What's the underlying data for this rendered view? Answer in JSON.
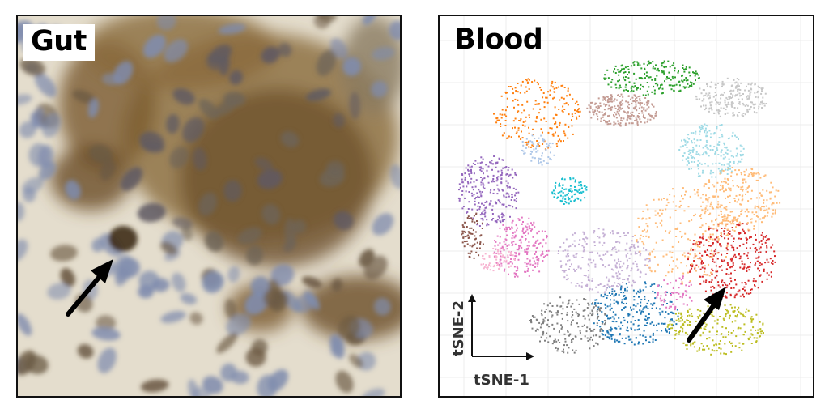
{
  "panels": {
    "gut": {
      "label": "Gut"
    },
    "blood": {
      "label": "Blood",
      "x_axis_label": "tSNE-1",
      "y_axis_label": "tSNE-2"
    }
  },
  "colors": {
    "arrow": "#000000",
    "tissue_background": "#e6e0d2",
    "brown_stain": "#7a5a30",
    "blue_nucleus": "#7f8cae",
    "cluster_palette": [
      "#2ca02c",
      "#ff7f0e",
      "#9467bd",
      "#e377c2",
      "#d62728",
      "#1f77b4",
      "#bcbd22",
      "#17becf",
      "#8c564b",
      "#7f7f7f",
      "#c49c94",
      "#f7b6d2",
      "#ffbb78",
      "#c5b0d5",
      "#9edae5",
      "#aec7e8",
      "#c7c7c7"
    ]
  },
  "icons": {
    "gut_arrow": "arrow-icon",
    "blood_arrow": "arrow-icon"
  }
}
